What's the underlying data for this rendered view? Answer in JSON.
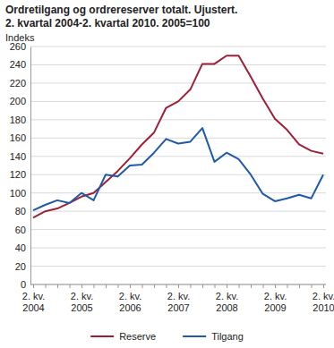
{
  "chart_data": {
    "type": "line",
    "title": "Ordretilgang og ordrereserver totalt. Ujustert.",
    "subtitle": "2. kvartal 2004-2. kvartal 2010. 2005=100",
    "y_label": "Indeks",
    "categories": [
      "2. kv. 2004",
      null,
      null,
      null,
      "2. kv. 2005",
      null,
      null,
      null,
      "2. kv. 2006",
      null,
      null,
      null,
      "2. kv. 2007",
      null,
      null,
      null,
      "2. kv. 2008",
      null,
      null,
      null,
      "2. kv. 2009",
      null,
      null,
      null,
      "2. kv. 2010"
    ],
    "series": [
      {
        "name": "Reserve",
        "color": "#9e1f37",
        "values": [
          73,
          80,
          83,
          89,
          96,
          100,
          112,
          124,
          138,
          153,
          166,
          193,
          200,
          213,
          241,
          241,
          250,
          250,
          227,
          203,
          181,
          169,
          153,
          146,
          143
        ]
      },
      {
        "name": "Tilgang",
        "color": "#1d5aa8",
        "values": [
          81,
          87,
          92,
          89,
          100,
          92,
          120,
          118,
          130,
          131,
          144,
          159,
          154,
          156,
          171,
          134,
          144,
          137,
          120,
          99,
          91,
          94,
          98,
          94,
          120
        ]
      }
    ],
    "ylim": [
      0,
      260
    ],
    "yticks": [
      0,
      20,
      40,
      60,
      80,
      100,
      120,
      140,
      160,
      180,
      200,
      220,
      240,
      260
    ],
    "grid": true,
    "legend": "bottom"
  }
}
